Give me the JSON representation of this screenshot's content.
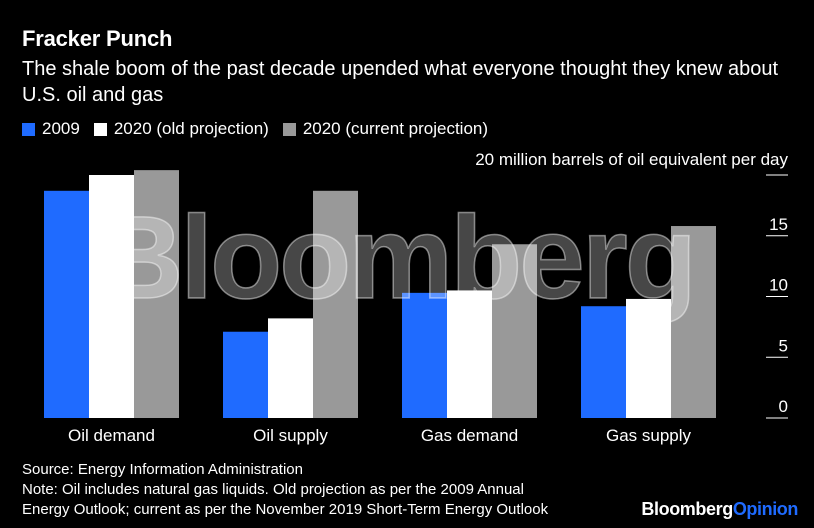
{
  "header": {
    "title": "Fracker Punch",
    "subtitle": "The shale boom of the past decade upended what everyone thought they knew about U.S. oil and gas"
  },
  "legend": [
    {
      "label": "2009",
      "color": "#1f6bff"
    },
    {
      "label": "2020 (old projection)",
      "color": "#ffffff"
    },
    {
      "label": "2020 (current projection)",
      "color": "#999999"
    }
  ],
  "chart_data": {
    "type": "bar",
    "title": "Fracker Punch",
    "subtitle": "The shale boom of the past decade upended what everyone thought they knew about U.S. oil and gas",
    "categories": [
      "Oil demand",
      "Oil supply",
      "Gas demand",
      "Gas supply"
    ],
    "series": [
      {
        "name": "2009",
        "color": "#1f6bff",
        "values": [
          18.7,
          7.1,
          10.3,
          9.2
        ]
      },
      {
        "name": "2020 (old projection)",
        "color": "#ffffff",
        "values": [
          20.0,
          8.2,
          10.5,
          9.8
        ]
      },
      {
        "name": "2020 (current projection)",
        "color": "#999999",
        "values": [
          20.4,
          18.7,
          14.3,
          15.8
        ]
      }
    ],
    "ylabel": "20 million barrels of oil equivalent per day",
    "ylim": [
      0,
      20
    ],
    "yticks": [
      0,
      5,
      10,
      15,
      20
    ],
    "ytick_labels": [
      "0",
      "5",
      "10",
      "15",
      ""
    ],
    "legend_position": "top-left",
    "grid": false
  },
  "footer": {
    "source": "Source: Energy Information Administration",
    "note_line1": "Note: Oil includes natural gas liquids. Old projection as per the 2009 Annual",
    "note_line2": "Energy Outlook; current as per the November 2019 Short-Term Energy Outlook"
  },
  "brand": {
    "watermark": "Bloomberg",
    "logo_main": "Bloomberg",
    "logo_accent": "Opinion"
  }
}
